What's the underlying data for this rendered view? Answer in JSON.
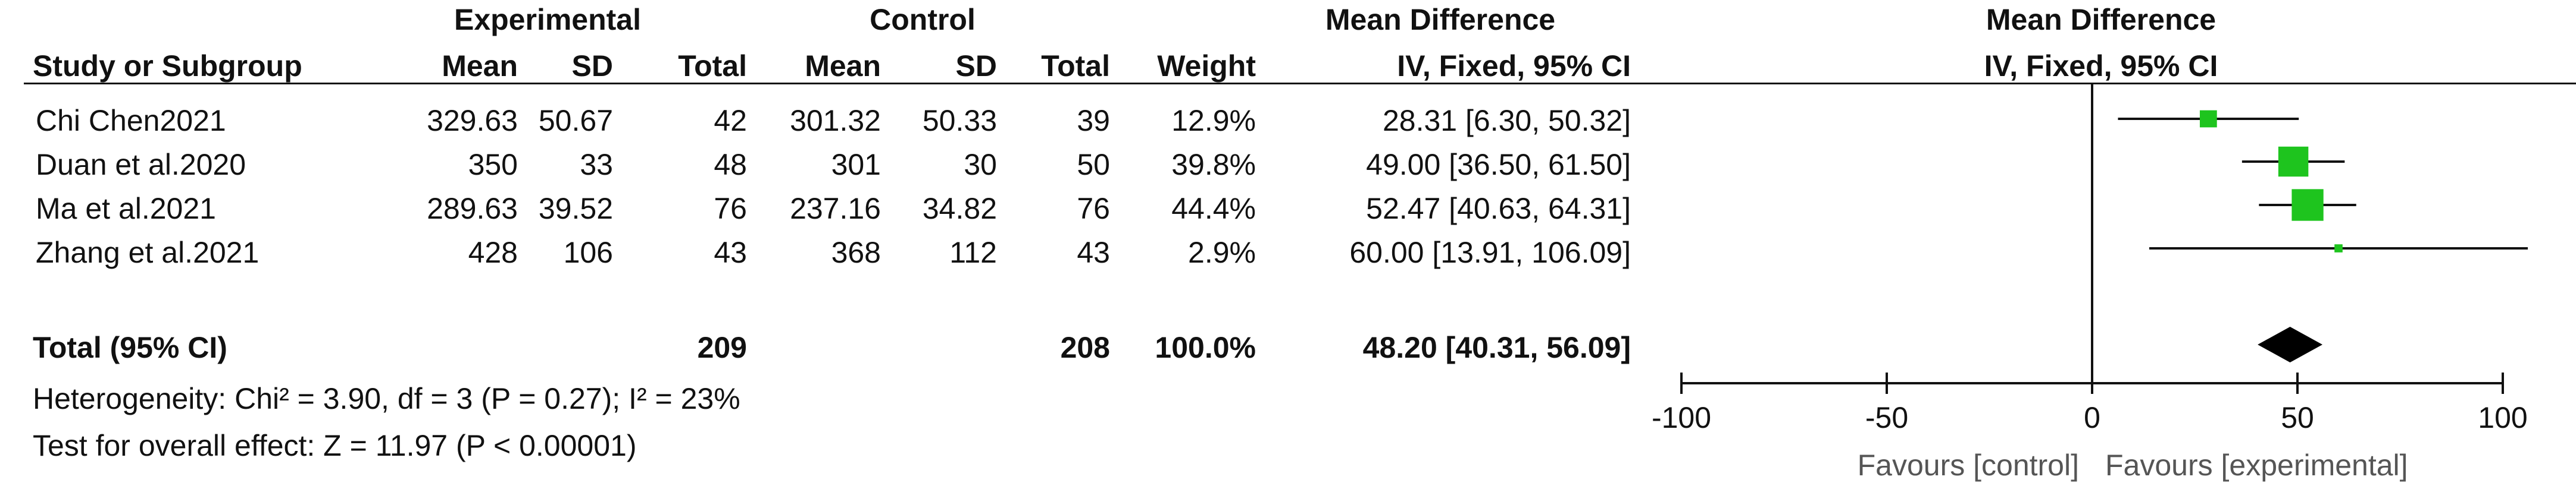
{
  "headers": {
    "experimental": "Experimental",
    "control": "Control",
    "mean_difference": "Mean Difference",
    "study_or_subgroup": "Study or Subgroup",
    "mean": "Mean",
    "sd": "SD",
    "total": "Total",
    "weight": "Weight",
    "method": "IV, Fixed, 95% CI"
  },
  "studies": [
    {
      "name": "Chi Chen2021",
      "exp_mean": "329.63",
      "exp_sd": "50.67",
      "exp_total": "42",
      "ctl_mean": "301.32",
      "ctl_sd": "50.33",
      "ctl_total": "39",
      "weight": "12.9%",
      "md_ci": "28.31 [6.30, 50.32]"
    },
    {
      "name": "Duan et al.2020",
      "exp_mean": "350",
      "exp_sd": "33",
      "exp_total": "48",
      "ctl_mean": "301",
      "ctl_sd": "30",
      "ctl_total": "50",
      "weight": "39.8%",
      "md_ci": "49.00 [36.50, 61.50]"
    },
    {
      "name": "Ma et al.2021",
      "exp_mean": "289.63",
      "exp_sd": "39.52",
      "exp_total": "76",
      "ctl_mean": "237.16",
      "ctl_sd": "34.82",
      "ctl_total": "76",
      "weight": "44.4%",
      "md_ci": "52.47 [40.63, 64.31]"
    },
    {
      "name": "Zhang et al.2021",
      "exp_mean": "428",
      "exp_sd": "106",
      "exp_total": "43",
      "ctl_mean": "368",
      "ctl_sd": "112",
      "ctl_total": "43",
      "weight": "2.9%",
      "md_ci": "60.00 [13.91, 106.09]"
    }
  ],
  "total": {
    "label": "Total (95% CI)",
    "exp_total": "209",
    "ctl_total": "208",
    "weight": "100.0%",
    "md_ci": "48.20 [40.31, 56.09]"
  },
  "heterogeneity": "Heterogeneity: Chi² = 3.90, df = 3 (P = 0.27); I² = 23%",
  "overall_effect": "Test for overall effect: Z = 11.97 (P < 0.00001)",
  "favours_left": "Favours [control]",
  "favours_right": "Favours [experimental]",
  "colors": {
    "marker": "#1ec41e",
    "diamond": "#000000",
    "line": "#111111"
  },
  "chart_data": {
    "type": "forest",
    "xlim": [
      -100,
      100
    ],
    "x_ticks": [
      -100,
      -50,
      0,
      50,
      100
    ],
    "studies": [
      {
        "name": "Chi Chen2021",
        "md": 28.31,
        "ci_low": 6.3,
        "ci_high": 50.32,
        "weight": 12.9
      },
      {
        "name": "Duan et al.2020",
        "md": 49.0,
        "ci_low": 36.5,
        "ci_high": 61.5,
        "weight": 39.8
      },
      {
        "name": "Ma et al.2021",
        "md": 52.47,
        "ci_low": 40.63,
        "ci_high": 64.31,
        "weight": 44.4
      },
      {
        "name": "Zhang et al.2021",
        "md": 60.0,
        "ci_low": 13.91,
        "ci_high": 106.09,
        "weight": 2.9
      }
    ],
    "pooled": {
      "md": 48.2,
      "ci_low": 40.31,
      "ci_high": 56.09
    }
  }
}
